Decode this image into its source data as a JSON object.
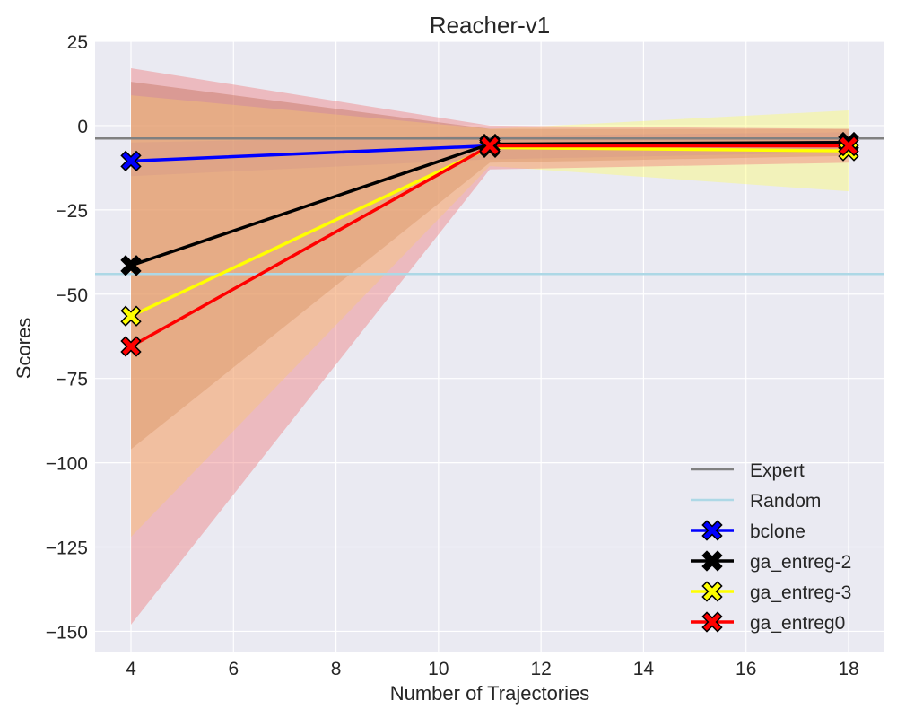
{
  "chart_data": {
    "type": "line",
    "title": "Reacher-v1",
    "xlabel": "Number of Trajectories",
    "ylabel": "Scores",
    "xlim": [
      3.3,
      18.7
    ],
    "ylim": [
      -156,
      25
    ],
    "xticks": [
      4,
      6,
      8,
      10,
      12,
      14,
      16,
      18
    ],
    "xtick_labels": [
      "4",
      "6",
      "8",
      "10",
      "12",
      "14",
      "16",
      "18"
    ],
    "yticks": [
      25,
      0,
      -25,
      -50,
      -75,
      -100,
      -125,
      -150
    ],
    "ytick_labels": [
      "25",
      "0",
      "−25",
      "−50",
      "−75",
      "−100",
      "−125",
      "−150"
    ],
    "grid": true,
    "legend_position": "lower-right",
    "x": [
      4,
      11,
      18
    ],
    "reference_lines": [
      {
        "name": "Expert",
        "y": -3.8,
        "color": "#808080"
      },
      {
        "name": "Random",
        "y": -44,
        "color": "#add8e6"
      }
    ],
    "series": [
      {
        "name": "bclone",
        "color": "#0000ff",
        "values": [
          -10.5,
          -6.0,
          -5.0
        ],
        "lower": [
          -15,
          -10,
          -8
        ],
        "upper": [
          -5,
          -3,
          -2
        ],
        "band_color": "#0000ff",
        "band_opacity": 0.15
      },
      {
        "name": "ga_entreg-2",
        "color": "#000000",
        "values": [
          -41.5,
          -5.5,
          -5.0
        ],
        "lower": [
          -96,
          -11,
          -9
        ],
        "upper": [
          13,
          -1,
          -1
        ],
        "band_color": "#8b4513",
        "band_opacity": 0.35
      },
      {
        "name": "ga_entreg-3",
        "color": "#ffff00",
        "values": [
          -56.5,
          -6.5,
          -7.5
        ],
        "lower": [
          -122,
          -12,
          -19.5
        ],
        "upper": [
          9,
          -1,
          4.5
        ],
        "band_color": "#ffff66",
        "band_opacity": 0.4
      },
      {
        "name": "ga_entreg0",
        "color": "#ff0000",
        "values": [
          -65.5,
          -6.0,
          -6.0
        ],
        "lower": [
          -148,
          -13,
          -11
        ],
        "upper": [
          17,
          0,
          -1
        ],
        "band_color": "#f08080",
        "band_opacity": 0.45
      }
    ]
  }
}
